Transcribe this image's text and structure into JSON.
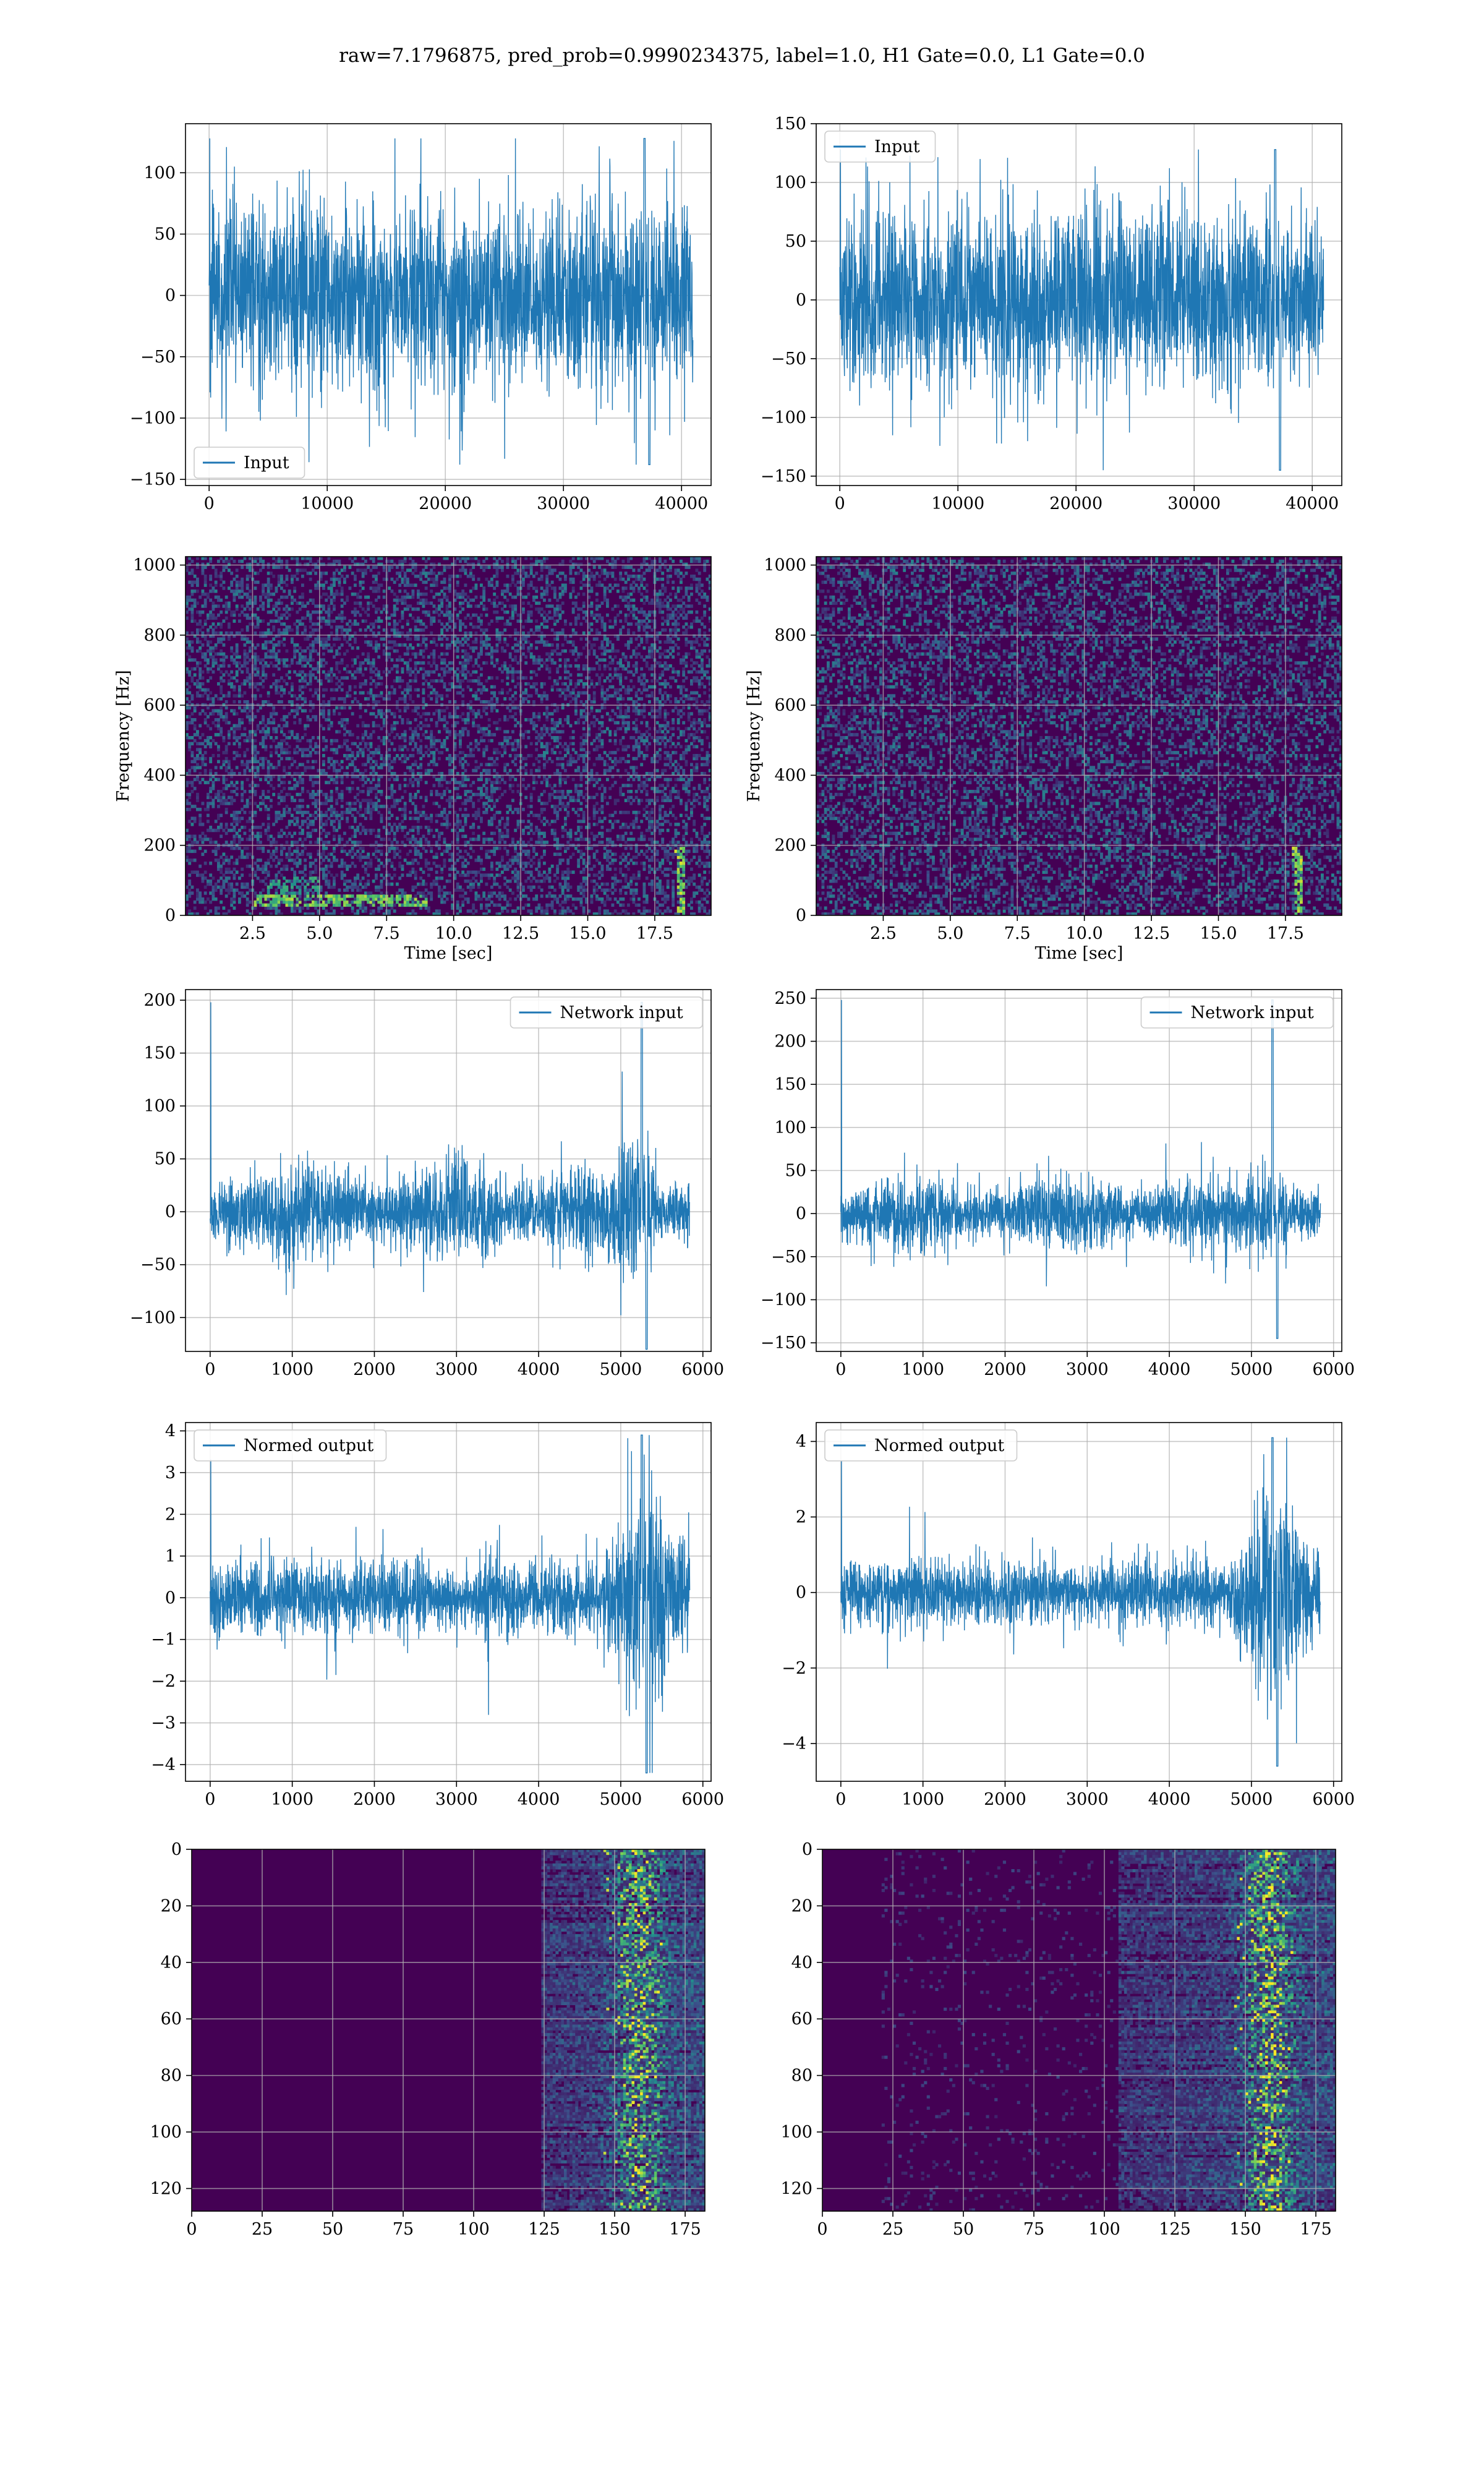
{
  "title": "raw=7.1796875, pred_prob=0.9990234375, label=1.0, H1 Gate=0.0, L1 Gate=0.0",
  "colors": {
    "line": "#1f77b4",
    "viridis_dark": "#440154",
    "viridis_mid": "#21918c",
    "viridis_bright": "#fde725",
    "grid": "#b0b0b0"
  },
  "chart_data": [
    {
      "id": "input-h1",
      "type": "line",
      "xlim": [
        -2000,
        42500
      ],
      "ylim": [
        -155,
        140
      ],
      "xticks": [
        0,
        10000,
        20000,
        30000,
        40000
      ],
      "yticks": [
        -150,
        -100,
        -50,
        0,
        50,
        100
      ],
      "legend": "lower left",
      "series": [
        {
          "name": "Input",
          "n": 40960,
          "x_range": [
            0,
            40960
          ],
          "envelope": [
            -70,
            65
          ],
          "peak_max": 128,
          "peak_min": -138
        }
      ],
      "grid": true
    },
    {
      "id": "input-l1",
      "type": "line",
      "xlim": [
        -2000,
        42500
      ],
      "ylim": [
        -158,
        150
      ],
      "xticks": [
        0,
        10000,
        20000,
        30000,
        40000
      ],
      "yticks": [
        -150,
        -100,
        -50,
        0,
        50,
        100,
        150
      ],
      "legend": "upper left",
      "series": [
        {
          "name": "Input",
          "n": 40960,
          "x_range": [
            0,
            40960
          ],
          "envelope": [
            -70,
            65
          ],
          "peak_max": 128,
          "peak_min": -145
        }
      ],
      "grid": true
    },
    {
      "id": "spec-h1",
      "type": "heatmap",
      "xlim": [
        0,
        19.6
      ],
      "ylim": [
        0,
        1024
      ],
      "xticks": [
        2.5,
        5.0,
        7.5,
        10.0,
        12.5,
        15.0,
        17.5
      ],
      "yticks": [
        0,
        200,
        400,
        600,
        800,
        1000
      ],
      "xlabel": "Time [sec]",
      "ylabel": "Frequency [Hz]",
      "features": "noise; low-frequency lines near 50 Hz around 3-8 s; chirp near 18.5 s"
    },
    {
      "id": "spec-l1",
      "type": "heatmap",
      "xlim": [
        0,
        19.6
      ],
      "ylim": [
        0,
        1024
      ],
      "xticks": [
        2.5,
        5.0,
        7.5,
        10.0,
        12.5,
        15.0,
        17.5
      ],
      "yticks": [
        0,
        200,
        400,
        600,
        800,
        1000
      ],
      "xlabel": "Time [sec]",
      "ylabel": "Frequency [Hz]",
      "features": "noise; chirp near 18 s"
    },
    {
      "id": "net-h1",
      "type": "line",
      "xlim": [
        -300,
        6100
      ],
      "ylim": [
        -132,
        210
      ],
      "xticks": [
        0,
        1000,
        2000,
        3000,
        4000,
        5000,
        6000
      ],
      "yticks": [
        -100,
        -50,
        0,
        50,
        100,
        150,
        200
      ],
      "legend": "upper right",
      "series": [
        {
          "name": "Network input",
          "n": 5840,
          "x_range": [
            0,
            5840
          ],
          "envelope": [
            -40,
            35
          ],
          "peak_max": 198,
          "peak_min": -130
        }
      ],
      "grid": true
    },
    {
      "id": "net-l1",
      "type": "line",
      "xlim": [
        -300,
        6100
      ],
      "ylim": [
        -160,
        260
      ],
      "xticks": [
        0,
        1000,
        2000,
        3000,
        4000,
        5000,
        6000
      ],
      "yticks": [
        -150,
        -100,
        -50,
        0,
        50,
        100,
        150,
        200,
        250
      ],
      "legend": "upper right",
      "series": [
        {
          "name": "Network input",
          "n": 5840,
          "x_range": [
            0,
            5840
          ],
          "envelope": [
            -40,
            35
          ],
          "peak_max": 248,
          "peak_min": -145
        }
      ],
      "grid": true
    },
    {
      "id": "norm-h1",
      "type": "line",
      "xlim": [
        -300,
        6100
      ],
      "ylim": [
        -4.4,
        4.2
      ],
      "xticks": [
        0,
        1000,
        2000,
        3000,
        4000,
        5000,
        6000
      ],
      "yticks": [
        -4,
        -3,
        -2,
        -1,
        0,
        1,
        2,
        3,
        4
      ],
      "legend": "upper left",
      "series": [
        {
          "name": "Normed output",
          "n": 5840,
          "x_range": [
            0,
            5840
          ],
          "envelope": [
            -0.8,
            0.8
          ],
          "peak_max": 3.9,
          "peak_min": -4.2
        }
      ],
      "grid": true
    },
    {
      "id": "norm-l1",
      "type": "line",
      "xlim": [
        -300,
        6100
      ],
      "ylim": [
        -5.0,
        4.5
      ],
      "xticks": [
        0,
        1000,
        2000,
        3000,
        4000,
        5000,
        6000
      ],
      "yticks": [
        -4,
        -2,
        0,
        2,
        4
      ],
      "legend": "upper left",
      "series": [
        {
          "name": "Normed output",
          "n": 5840,
          "x_range": [
            0,
            5840
          ],
          "envelope": [
            -0.8,
            0.8
          ],
          "peak_max": 4.1,
          "peak_min": -4.6
        }
      ],
      "grid": true
    },
    {
      "id": "feat-h1",
      "type": "heatmap",
      "xlim": [
        0,
        182
      ],
      "ylim": [
        128,
        0
      ],
      "xticks": [
        0,
        25,
        50,
        75,
        100,
        125,
        150,
        175
      ],
      "yticks": [
        0,
        20,
        40,
        60,
        80,
        100,
        120
      ],
      "features": "128 rows x 182 columns; activity begins near column 125, strongest near 150-165"
    },
    {
      "id": "feat-l1",
      "type": "heatmap",
      "xlim": [
        0,
        182
      ],
      "ylim": [
        128,
        0
      ],
      "xticks": [
        0,
        25,
        50,
        75,
        100,
        125,
        150,
        175
      ],
      "yticks": [
        0,
        20,
        40,
        60,
        80,
        100,
        120
      ],
      "features": "128 rows x 182 columns; activity begins near column 105, strongest near 150-165"
    }
  ]
}
